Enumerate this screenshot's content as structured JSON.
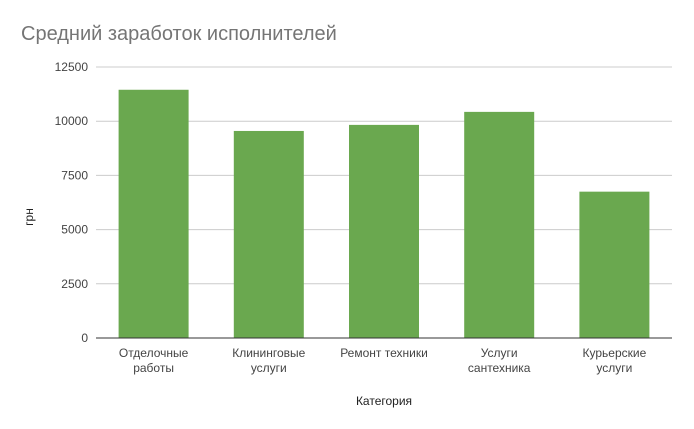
{
  "chart_data": {
    "type": "bar",
    "title": "Средний заработок исполнителей",
    "xlabel": "Категория",
    "ylabel": "грн",
    "categories": [
      [
        "Отделочные",
        "работы"
      ],
      [
        "Клининговые",
        "услуги"
      ],
      [
        "Ремонт техники"
      ],
      [
        "Услуги",
        "сантехника"
      ],
      [
        "Курьерские",
        "услуги"
      ]
    ],
    "values": [
      11450,
      9550,
      9830,
      10430,
      6750
    ],
    "ylim": [
      0,
      12500
    ],
    "yticks": [
      0,
      2500,
      5000,
      7500,
      10000,
      12500
    ],
    "grid": true,
    "legend": "none",
    "bar_color": "#6aa84f"
  }
}
